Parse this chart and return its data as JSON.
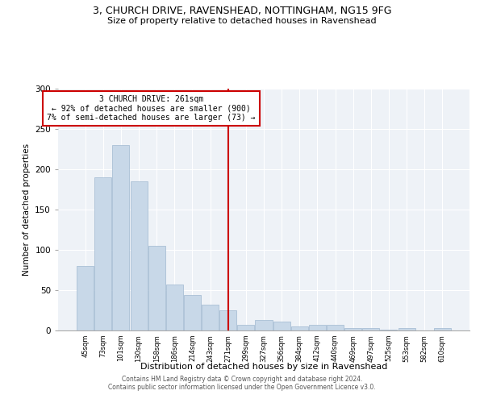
{
  "title_line1": "3, CHURCH DRIVE, RAVENSHEAD, NOTTINGHAM, NG15 9FG",
  "title_line2": "Size of property relative to detached houses in Ravenshead",
  "xlabel": "Distribution of detached houses by size in Ravenshead",
  "ylabel": "Number of detached properties",
  "categories": [
    "45sqm",
    "73sqm",
    "101sqm",
    "130sqm",
    "158sqm",
    "186sqm",
    "214sqm",
    "243sqm",
    "271sqm",
    "299sqm",
    "327sqm",
    "356sqm",
    "384sqm",
    "412sqm",
    "440sqm",
    "469sqm",
    "497sqm",
    "525sqm",
    "553sqm",
    "582sqm",
    "610sqm"
  ],
  "values": [
    80,
    190,
    230,
    185,
    105,
    57,
    44,
    32,
    25,
    7,
    13,
    11,
    5,
    7,
    7,
    3,
    3,
    1,
    3,
    0,
    3
  ],
  "bar_color": "#c8d8e8",
  "bar_edge_color": "#a0b8d0",
  "vline_index": 8,
  "annotation_line1": "3 CHURCH DRIVE: 261sqm",
  "annotation_line2": "← 92% of detached houses are smaller (900)",
  "annotation_line3": "7% of semi-detached houses are larger (73) →",
  "annotation_box_color": "#cc0000",
  "vline_color": "#cc0000",
  "ylim": [
    0,
    300
  ],
  "yticks": [
    0,
    50,
    100,
    150,
    200,
    250,
    300
  ],
  "bg_color": "#eef2f7",
  "footer_line1": "Contains HM Land Registry data © Crown copyright and database right 2024.",
  "footer_line2": "Contains public sector information licensed under the Open Government Licence v3.0."
}
